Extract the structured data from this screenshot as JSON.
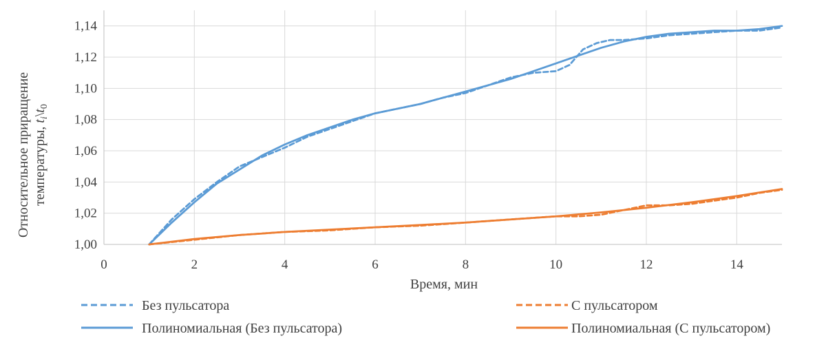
{
  "chart_data": {
    "type": "line",
    "xlabel": "Время, мин",
    "ylabel_line1": "Относительное приращение",
    "ylabel_line2_prefix": "температуры, ",
    "ylabel_math": "t",
    "ylabel_sub_i": "i",
    "ylabel_sep": "\\",
    "ylabel_sub_0": "0",
    "xlim": [
      0,
      15
    ],
    "ylim": [
      1.0,
      1.15
    ],
    "x_ticks": [
      0,
      2,
      4,
      6,
      8,
      10,
      12,
      14
    ],
    "x_tick_labels": [
      "0",
      "2",
      "4",
      "6",
      "8",
      "10",
      "12",
      "14"
    ],
    "y_ticks": [
      1.0,
      1.02,
      1.04,
      1.06,
      1.08,
      1.1,
      1.12,
      1.14
    ],
    "y_tick_labels": [
      "1,00",
      "1,02",
      "1,04",
      "1,06",
      "1,08",
      "1,10",
      "1,12",
      "1,14"
    ],
    "grid": true,
    "legend_position": "bottom",
    "series": [
      {
        "name": "Без пульсатора",
        "color": "#5b9bd5",
        "style": "dashed",
        "x": [
          1,
          1.5,
          2,
          2.5,
          3,
          3.5,
          4,
          4.5,
          5,
          5.5,
          6,
          6.5,
          7,
          7.5,
          8,
          8.5,
          9,
          9.5,
          10,
          10.3,
          10.6,
          10.9,
          11.2,
          11.5,
          12,
          12.5,
          13,
          13.5,
          14,
          14.5,
          15
        ],
        "y": [
          1.0,
          1.016,
          1.029,
          1.04,
          1.05,
          1.056,
          1.062,
          1.069,
          1.074,
          1.079,
          1.084,
          1.087,
          1.09,
          1.094,
          1.097,
          1.102,
          1.107,
          1.11,
          1.111,
          1.115,
          1.125,
          1.129,
          1.131,
          1.131,
          1.132,
          1.134,
          1.135,
          1.136,
          1.137,
          1.137,
          1.139
        ]
      },
      {
        "name": "С пульсатором",
        "color": "#ed7d31",
        "style": "dashed",
        "x": [
          1,
          2,
          3,
          4,
          5,
          6,
          7,
          8,
          9,
          10,
          10.5,
          11,
          11.5,
          12,
          12.5,
          13,
          13.5,
          14,
          14.5,
          15
        ],
        "y": [
          1.0,
          1.003,
          1.006,
          1.008,
          1.009,
          1.011,
          1.012,
          1.014,
          1.016,
          1.018,
          1.018,
          1.019,
          1.022,
          1.025,
          1.025,
          1.026,
          1.028,
          1.03,
          1.033,
          1.035
        ]
      },
      {
        "name": "Полиномиальная (Без пульсатора)",
        "color": "#5b9bd5",
        "style": "solid",
        "x": [
          1,
          1.5,
          2,
          2.5,
          3,
          3.5,
          4,
          4.5,
          5,
          5.5,
          6,
          6.5,
          7,
          7.5,
          8,
          8.5,
          9,
          9.5,
          10,
          10.5,
          11,
          11.5,
          12,
          12.5,
          13,
          13.5,
          14,
          14.5,
          15
        ],
        "y": [
          1.0,
          1.014,
          1.027,
          1.039,
          1.048,
          1.057,
          1.064,
          1.07,
          1.075,
          1.08,
          1.084,
          1.087,
          1.09,
          1.094,
          1.098,
          1.102,
          1.106,
          1.111,
          1.116,
          1.121,
          1.126,
          1.13,
          1.133,
          1.135,
          1.136,
          1.137,
          1.137,
          1.138,
          1.14
        ]
      },
      {
        "name": "Полиномиальная (С пульсатором)",
        "color": "#ed7d31",
        "style": "solid",
        "x": [
          1,
          2,
          3,
          4,
          5,
          6,
          7,
          8,
          9,
          10,
          11,
          12,
          13,
          14,
          15
        ],
        "y": [
          1.0,
          1.0035,
          1.006,
          1.008,
          1.0095,
          1.011,
          1.0125,
          1.014,
          1.016,
          1.018,
          1.0205,
          1.0235,
          1.027,
          1.031,
          1.0355
        ]
      }
    ]
  }
}
